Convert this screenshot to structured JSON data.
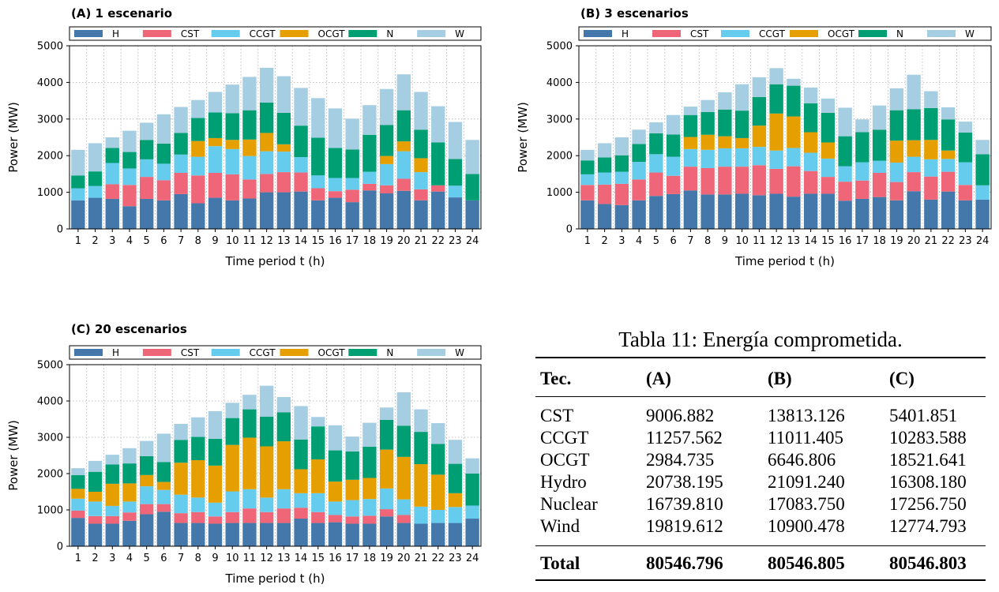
{
  "legend": [
    {
      "key": "H",
      "label": "H",
      "color": "#4477aa"
    },
    {
      "key": "CST",
      "label": "CST",
      "color": "#ee6677"
    },
    {
      "key": "CCGT",
      "label": "CCGT",
      "color": "#66ccee"
    },
    {
      "key": "OCGT",
      "label": "OCGT",
      "color": "#e69f00"
    },
    {
      "key": "N",
      "label": "N",
      "color": "#009e73"
    },
    {
      "key": "W",
      "label": "W",
      "color": "#a6cee3"
    }
  ],
  "chart_data": [
    {
      "type": "bar",
      "stacked": true,
      "title": "(A) 1 escenario",
      "xlabel": "Time period t (h)",
      "ylabel": "Power (MW)",
      "ylim": [
        0,
        5000
      ],
      "yticks": [
        0,
        1000,
        2000,
        3000,
        4000,
        5000
      ],
      "grid": true,
      "legend_position": "top",
      "categories": [
        "1",
        "2",
        "3",
        "4",
        "5",
        "6",
        "7",
        "8",
        "9",
        "10",
        "11",
        "12",
        "13",
        "14",
        "15",
        "16",
        "17",
        "18",
        "19",
        "20",
        "21",
        "22",
        "23",
        "24"
      ],
      "series": [
        {
          "name": "H",
          "values": [
            780,
            850,
            820,
            620,
            820,
            780,
            950,
            700,
            850,
            780,
            830,
            1000,
            1000,
            1020,
            780,
            850,
            730,
            1050,
            970,
            1040,
            780,
            1020,
            860,
            780
          ]
        },
        {
          "name": "CST",
          "values": [
            0,
            0,
            400,
            580,
            600,
            550,
            580,
            760,
            680,
            710,
            520,
            500,
            550,
            520,
            330,
            180,
            340,
            180,
            220,
            330,
            300,
            170,
            0,
            0
          ]
        },
        {
          "name": "CCGT",
          "values": [
            330,
            320,
            580,
            450,
            480,
            450,
            500,
            510,
            730,
            690,
            640,
            620,
            560,
            420,
            350,
            360,
            320,
            330,
            580,
            750,
            470,
            0,
            320,
            0
          ]
        },
        {
          "name": "OCGT",
          "values": [
            0,
            0,
            0,
            0,
            0,
            0,
            0,
            430,
            220,
            250,
            450,
            500,
            200,
            0,
            0,
            0,
            0,
            0,
            220,
            270,
            380,
            0,
            0,
            0
          ]
        },
        {
          "name": "N",
          "values": [
            350,
            400,
            410,
            450,
            530,
            550,
            590,
            630,
            700,
            730,
            800,
            830,
            860,
            860,
            1030,
            820,
            780,
            1010,
            850,
            850,
            780,
            1170,
            730,
            720
          ]
        },
        {
          "name": "W",
          "values": [
            700,
            770,
            290,
            580,
            470,
            800,
            710,
            490,
            560,
            780,
            910,
            950,
            1000,
            1030,
            1080,
            1080,
            840,
            810,
            980,
            980,
            1030,
            990,
            1010,
            930
          ]
        }
      ]
    },
    {
      "type": "bar",
      "stacked": true,
      "title": "(B) 3 escenarios",
      "xlabel": "Time period t (h)",
      "ylabel": "Power (MW)",
      "ylim": [
        0,
        5000
      ],
      "yticks": [
        0,
        1000,
        2000,
        3000,
        4000,
        5000
      ],
      "grid": true,
      "legend_position": "top",
      "categories": [
        "1",
        "2",
        "3",
        "4",
        "5",
        "6",
        "7",
        "8",
        "9",
        "10",
        "11",
        "12",
        "13",
        "14",
        "15",
        "16",
        "17",
        "18",
        "19",
        "20",
        "21",
        "22",
        "23",
        "24"
      ],
      "series": [
        {
          "name": "H",
          "values": [
            780,
            680,
            650,
            780,
            900,
            950,
            1050,
            940,
            940,
            960,
            920,
            960,
            880,
            960,
            960,
            770,
            820,
            870,
            780,
            1030,
            800,
            1020,
            780,
            800
          ]
        },
        {
          "name": "CST",
          "values": [
            420,
            530,
            580,
            570,
            640,
            500,
            650,
            720,
            760,
            740,
            820,
            680,
            830,
            620,
            460,
            520,
            500,
            660,
            500,
            520,
            630,
            540,
            420,
            0
          ]
        },
        {
          "name": "CCGT",
          "values": [
            290,
            330,
            330,
            480,
            500,
            520,
            480,
            500,
            500,
            500,
            500,
            500,
            500,
            500,
            500,
            420,
            500,
            330,
            530,
            420,
            470,
            350,
            620,
            390
          ]
        },
        {
          "name": "OCGT",
          "values": [
            0,
            0,
            0,
            0,
            0,
            0,
            330,
            410,
            330,
            280,
            580,
            1010,
            860,
            560,
            440,
            0,
            0,
            0,
            600,
            450,
            530,
            230,
            0,
            0
          ]
        },
        {
          "name": "N",
          "values": [
            380,
            410,
            450,
            490,
            570,
            610,
            600,
            620,
            730,
            750,
            780,
            800,
            840,
            790,
            810,
            820,
            820,
            850,
            830,
            850,
            870,
            850,
            810,
            850
          ]
        },
        {
          "name": "W",
          "values": [
            290,
            390,
            490,
            390,
            300,
            530,
            230,
            330,
            470,
            720,
            540,
            440,
            190,
            430,
            390,
            780,
            350,
            660,
            600,
            940,
            460,
            330,
            300,
            390
          ]
        }
      ]
    },
    {
      "type": "bar",
      "stacked": true,
      "title": "(C) 20 escenarios",
      "xlabel": "Time period t (h)",
      "ylabel": "Power (MW)",
      "ylim": [
        0,
        5000
      ],
      "yticks": [
        0,
        1000,
        2000,
        3000,
        4000,
        5000
      ],
      "grid": true,
      "legend_position": "top",
      "categories": [
        "1",
        "2",
        "3",
        "4",
        "5",
        "6",
        "7",
        "8",
        "9",
        "10",
        "11",
        "12",
        "13",
        "14",
        "15",
        "16",
        "17",
        "18",
        "19",
        "20",
        "21",
        "22",
        "23",
        "24"
      ],
      "series": [
        {
          "name": "H",
          "values": [
            780,
            620,
            620,
            700,
            880,
            950,
            640,
            640,
            620,
            640,
            640,
            640,
            640,
            760,
            640,
            660,
            620,
            620,
            820,
            640,
            620,
            640,
            640,
            760
          ]
        },
        {
          "name": "CST",
          "values": [
            200,
            210,
            210,
            230,
            280,
            210,
            270,
            300,
            200,
            300,
            400,
            300,
            400,
            300,
            300,
            200,
            200,
            220,
            200,
            220,
            0,
            0,
            0,
            0
          ]
        },
        {
          "name": "CCGT",
          "values": [
            330,
            400,
            280,
            300,
            490,
            390,
            510,
            400,
            380,
            570,
            530,
            400,
            530,
            400,
            520,
            370,
            450,
            460,
            570,
            430,
            470,
            360,
            440,
            360
          ]
        },
        {
          "name": "OCGT",
          "values": [
            270,
            270,
            610,
            500,
            310,
            220,
            880,
            1030,
            1020,
            1280,
            1420,
            1410,
            1320,
            660,
            930,
            550,
            560,
            580,
            1070,
            1170,
            1170,
            970,
            380,
            0
          ]
        },
        {
          "name": "N",
          "values": [
            380,
            550,
            530,
            550,
            520,
            550,
            630,
            640,
            740,
            740,
            780,
            820,
            800,
            820,
            910,
            860,
            780,
            860,
            820,
            860,
            890,
            850,
            810,
            880
          ]
        },
        {
          "name": "W",
          "values": [
            190,
            300,
            270,
            420,
            420,
            780,
            440,
            540,
            760,
            420,
            400,
            850,
            420,
            920,
            260,
            690,
            410,
            660,
            340,
            920,
            620,
            570,
            660,
            420
          ]
        }
      ]
    }
  ],
  "table": {
    "caption": "Tabla 11: Energía comprometida.",
    "headers": [
      "Tec.",
      "(A)",
      "(B)",
      "(C)"
    ],
    "rows": [
      [
        "CST",
        "9006.882",
        "13813.126",
        "5401.851"
      ],
      [
        "CCGT",
        "11257.562",
        "11011.405",
        "10283.588"
      ],
      [
        "OCGT",
        "2984.735",
        "6646.806",
        "18521.641"
      ],
      [
        "Hydro",
        "20738.195",
        "21091.240",
        "16308.180"
      ],
      [
        "Nuclear",
        "16739.810",
        "17083.750",
        "17256.750"
      ],
      [
        "Wind",
        "19819.612",
        "10900.478",
        "12774.793"
      ]
    ],
    "total": [
      "Total",
      "80546.796",
      "80546.805",
      "80546.803"
    ]
  }
}
